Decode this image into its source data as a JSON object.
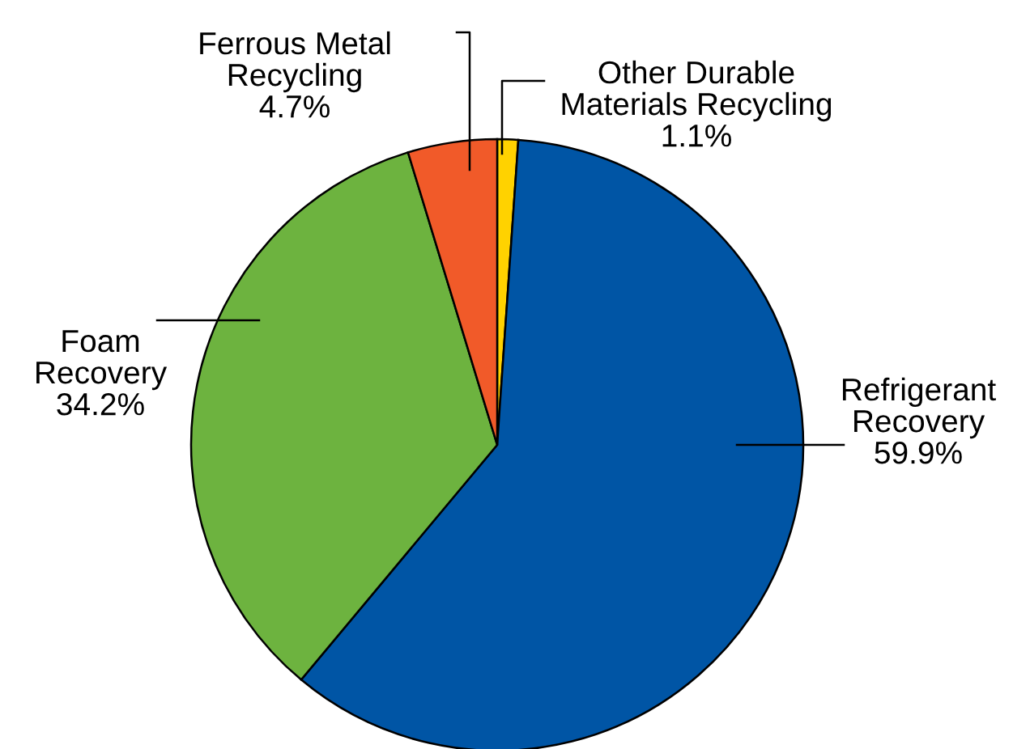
{
  "chart_data": {
    "type": "pie",
    "categories": [
      "Other Durable\nMaterials Recycling",
      "Refrigerant\nRecovery",
      "Foam\nRecovery",
      "Ferrous Metal\nRecycling"
    ],
    "values": [
      1.1,
      59.9,
      34.2,
      4.7
    ],
    "colors": [
      "#ffd200",
      "#0055a5",
      "#6db33f",
      "#f15a29"
    ],
    "value_labels": [
      "1.1%",
      "59.9%",
      "34.2%",
      "4.7%"
    ]
  }
}
